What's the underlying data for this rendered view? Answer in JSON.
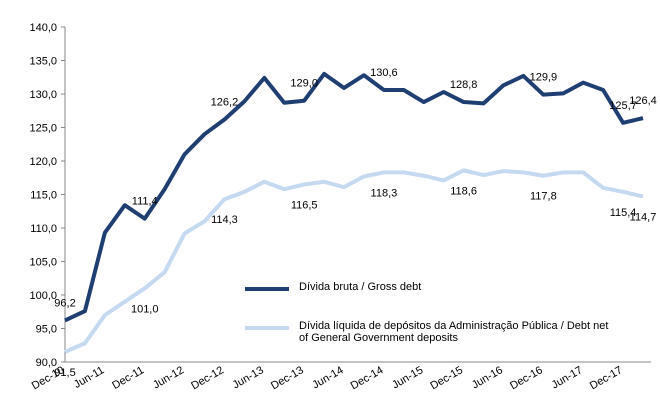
{
  "chart_data": {
    "type": "line",
    "categories": [
      "Dec-10",
      null,
      "Jun-11",
      null,
      "Dec-11",
      null,
      "Jun-12",
      null,
      "Dec-12",
      null,
      "Jun-13",
      null,
      "Dec-13",
      null,
      "Jun-14",
      null,
      "Dec-14",
      null,
      "Jun-15",
      null,
      "Dec-15",
      null,
      "Jun-16",
      null,
      "Dec-16",
      null,
      "Jun-17",
      null,
      "Dec-17",
      null
    ],
    "series": [
      {
        "name": "Dívida bruta / Gross debt",
        "color": "#1f3f73",
        "values": [
          96.2,
          97.6,
          109.3,
          113.4,
          111.4,
          115.8,
          121.0,
          124.0,
          126.2,
          128.9,
          132.4,
          128.7,
          129.0,
          133.0,
          130.9,
          132.8,
          130.6,
          130.6,
          128.8,
          130.3,
          128.8,
          128.6,
          131.3,
          132.7,
          129.9,
          130.1,
          131.7,
          130.6,
          125.7,
          126.4
        ],
        "value_labels": [
          "96,2",
          null,
          null,
          null,
          "111,4",
          null,
          null,
          null,
          "126,2",
          null,
          null,
          null,
          "129,0",
          null,
          null,
          null,
          "130,6",
          null,
          null,
          null,
          "128,8",
          null,
          null,
          null,
          "129,9",
          null,
          null,
          null,
          "125,7",
          "126,4"
        ]
      },
      {
        "name": "Dívida líquida de depósitos da Administração Pública / Debt net of General Government deposits",
        "color": "#c5d9f1",
        "values": [
          91.5,
          92.8,
          97.0,
          99.0,
          101.0,
          103.4,
          109.2,
          111.0,
          114.3,
          115.4,
          116.9,
          115.8,
          116.5,
          116.9,
          116.1,
          117.7,
          118.3,
          118.3,
          117.8,
          117.1,
          118.6,
          117.9,
          118.5,
          118.3,
          117.8,
          118.3,
          118.3,
          116.0,
          115.4,
          114.7
        ],
        "value_labels": [
          "91,5",
          null,
          null,
          null,
          "101,0",
          null,
          null,
          null,
          "114,3",
          null,
          null,
          null,
          "116,5",
          null,
          null,
          null,
          "118,3",
          null,
          null,
          null,
          "118,6",
          null,
          null,
          null,
          "117,8",
          null,
          null,
          null,
          "115,4",
          "114,7"
        ]
      }
    ],
    "ylim": [
      90,
      140
    ],
    "yticks": [
      {
        "value": 90,
        "label": "90,0"
      },
      {
        "value": 95,
        "label": "95,0"
      },
      {
        "value": 100,
        "label": "100,0"
      },
      {
        "value": 105,
        "label": "105,0"
      },
      {
        "value": 110,
        "label": "110,0"
      },
      {
        "value": 115,
        "label": "115,0"
      },
      {
        "value": 120,
        "label": "120,0"
      },
      {
        "value": 125,
        "label": "125,0"
      },
      {
        "value": 130,
        "label": "130,0"
      },
      {
        "value": 135,
        "label": "135,0"
      },
      {
        "value": 140,
        "label": "140,0"
      }
    ],
    "grid": false,
    "legend": "lower center"
  }
}
